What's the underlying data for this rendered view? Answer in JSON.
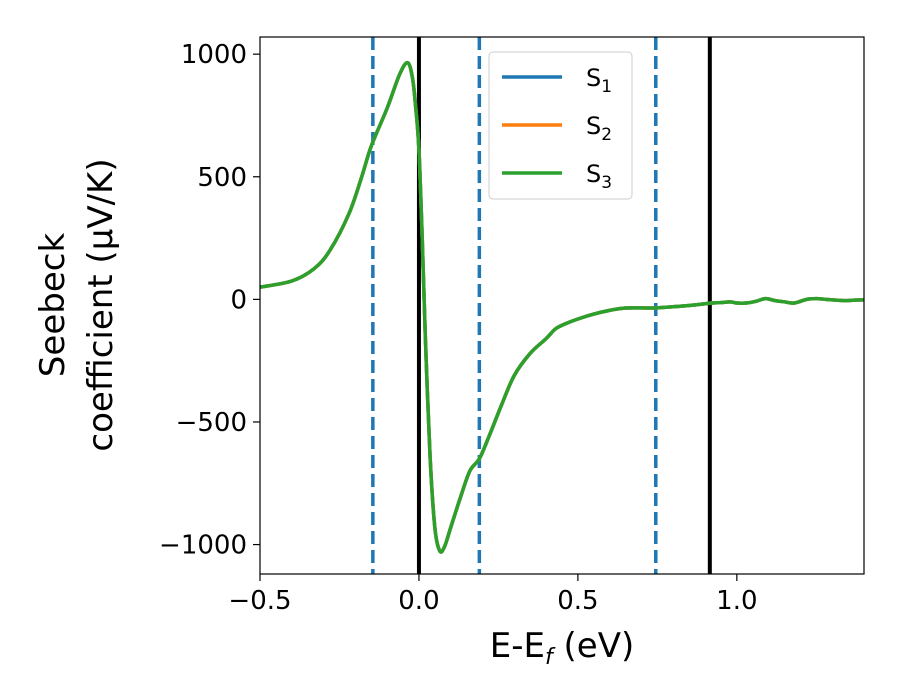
{
  "chart_data": {
    "type": "line",
    "xlabel_base": "E-E",
    "xlabel_sub": "f",
    "xlabel_tail": " (eV)",
    "ylabel_line1": "Seebeck",
    "ylabel_line2": "coefficient  (μV/K)",
    "xlim": [
      -0.5,
      1.4
    ],
    "ylim": [
      -1120,
      1070
    ],
    "xticks": [
      -0.5,
      0.0,
      0.5,
      1.0
    ],
    "xtick_labels": [
      "−0.5",
      "0.0",
      "0.5",
      "1.0"
    ],
    "yticks": [
      1000,
      500,
      0,
      -500,
      -1000
    ],
    "ytick_labels": [
      "1000",
      "500",
      "0",
      "−500",
      "−1000"
    ],
    "legend_placement": "upper-center",
    "series": [
      {
        "name_base": "S",
        "name_sub": "1",
        "color": "#1f77b4",
        "x": [
          -0.5,
          -0.4,
          -0.33,
          -0.28,
          -0.22,
          -0.18,
          -0.15,
          -0.1,
          -0.06,
          -0.035,
          -0.02,
          -0.01,
          0.0,
          0.01,
          0.02,
          0.035,
          0.05,
          0.065,
          0.08,
          0.1,
          0.13,
          0.16,
          0.19,
          0.22,
          0.26,
          0.3,
          0.35,
          0.4,
          0.43,
          0.46,
          0.5,
          0.55,
          0.6,
          0.65,
          0.74,
          0.8,
          0.85,
          0.9,
          0.92,
          0.95,
          0.98,
          1.0,
          1.03,
          1.06,
          1.09,
          1.12,
          1.15,
          1.18,
          1.22,
          1.25,
          1.28,
          1.31,
          1.34,
          1.37,
          1.4
        ],
        "y": [
          50,
          75,
          125,
          200,
          350,
          500,
          625,
          780,
          920,
          965,
          900,
          780,
          610,
          260,
          -150,
          -640,
          -930,
          -1025,
          -1010,
          -930,
          -810,
          -700,
          -650,
          -560,
          -430,
          -310,
          -220,
          -160,
          -120,
          -100,
          -80,
          -60,
          -45,
          -35,
          -35,
          -30,
          -25,
          -18,
          -15,
          -13,
          -10,
          -15,
          -15,
          -8,
          3,
          -5,
          -10,
          -15,
          0,
          3,
          0,
          -3,
          -5,
          -3,
          -2
        ]
      },
      {
        "name_base": "S",
        "name_sub": "2",
        "color": "#ff7f0e",
        "x": [
          -0.5,
          -0.4,
          -0.33,
          -0.28,
          -0.22,
          -0.18,
          -0.15,
          -0.1,
          -0.06,
          -0.035,
          -0.02,
          -0.01,
          0.0,
          0.01,
          0.02,
          0.035,
          0.05,
          0.065,
          0.08,
          0.1,
          0.13,
          0.16,
          0.19,
          0.22,
          0.26,
          0.3,
          0.35,
          0.4,
          0.43,
          0.46,
          0.5,
          0.55,
          0.6,
          0.65,
          0.74,
          0.8,
          0.85,
          0.9,
          0.92,
          0.95,
          0.98,
          1.0,
          1.03,
          1.06,
          1.09,
          1.12,
          1.15,
          1.18,
          1.22,
          1.25,
          1.28,
          1.31,
          1.34,
          1.37,
          1.4
        ],
        "y": [
          50,
          75,
          125,
          200,
          350,
          500,
          625,
          780,
          920,
          965,
          900,
          780,
          610,
          260,
          -150,
          -640,
          -930,
          -1025,
          -1010,
          -930,
          -810,
          -700,
          -650,
          -560,
          -430,
          -310,
          -220,
          -160,
          -120,
          -100,
          -80,
          -60,
          -45,
          -35,
          -35,
          -30,
          -25,
          -18,
          -15,
          -13,
          -10,
          -15,
          -15,
          -8,
          3,
          -5,
          -10,
          -15,
          0,
          3,
          0,
          -3,
          -5,
          -3,
          -2
        ]
      },
      {
        "name_base": "S",
        "name_sub": "3",
        "color": "#2ca02c",
        "x": [
          -0.5,
          -0.4,
          -0.33,
          -0.28,
          -0.22,
          -0.18,
          -0.15,
          -0.1,
          -0.06,
          -0.035,
          -0.02,
          -0.01,
          0.0,
          0.01,
          0.02,
          0.035,
          0.05,
          0.065,
          0.08,
          0.1,
          0.13,
          0.16,
          0.19,
          0.22,
          0.26,
          0.3,
          0.35,
          0.4,
          0.43,
          0.46,
          0.5,
          0.55,
          0.6,
          0.65,
          0.74,
          0.8,
          0.85,
          0.9,
          0.92,
          0.95,
          0.98,
          1.0,
          1.03,
          1.06,
          1.09,
          1.12,
          1.15,
          1.18,
          1.22,
          1.25,
          1.28,
          1.31,
          1.34,
          1.37,
          1.4
        ],
        "y": [
          50,
          75,
          125,
          200,
          350,
          500,
          625,
          780,
          920,
          965,
          900,
          780,
          610,
          260,
          -150,
          -640,
          -930,
          -1025,
          -1010,
          -930,
          -810,
          -700,
          -650,
          -560,
          -430,
          -310,
          -220,
          -160,
          -120,
          -100,
          -80,
          -60,
          -45,
          -35,
          -35,
          -30,
          -25,
          -18,
          -15,
          -13,
          -10,
          -15,
          -15,
          -8,
          3,
          -5,
          -10,
          -15,
          0,
          3,
          0,
          -3,
          -5,
          -3,
          -2
        ]
      }
    ],
    "vlines": [
      {
        "x": -0.145,
        "style": "dashed",
        "color": "#1f77b4"
      },
      {
        "x": 0.19,
        "style": "dashed",
        "color": "#1f77b4"
      },
      {
        "x": 0.745,
        "style": "dashed",
        "color": "#1f77b4"
      },
      {
        "x": 0.0,
        "style": "solid",
        "color": "#000000"
      },
      {
        "x": 0.915,
        "style": "solid",
        "color": "#000000"
      }
    ],
    "grid": false
  }
}
